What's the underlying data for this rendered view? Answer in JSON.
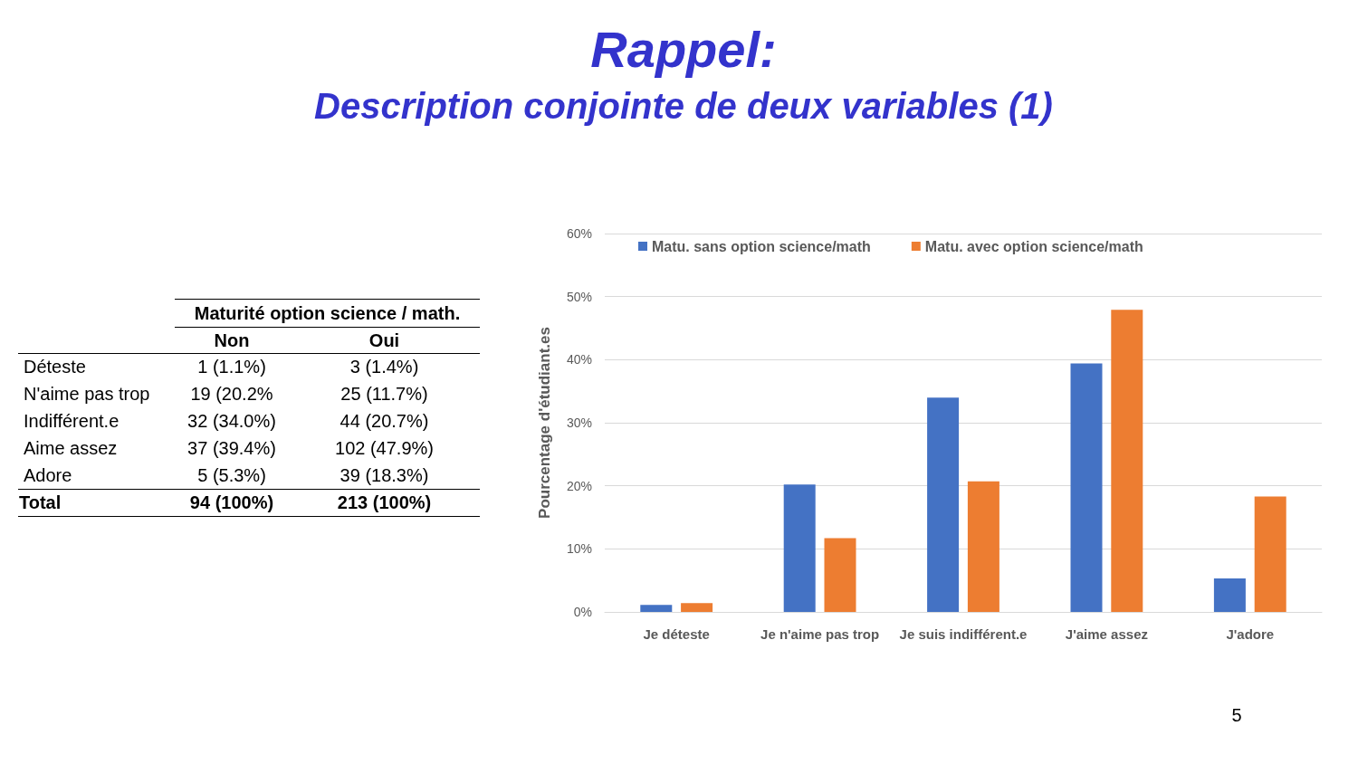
{
  "chart_data": {
    "type": "bar",
    "title": "Rappel:",
    "subtitle": "Description conjointe de deux variables (1)",
    "ylabel": "Pourcentage d'étudiant.es",
    "categories": [
      "Je déteste",
      "Je n'aime pas trop",
      "Je suis indifférent.e",
      "J'aime assez",
      "J'adore"
    ],
    "series": [
      {
        "name": "Matu. sans option science/math",
        "color": "#4472c4",
        "values": [
          1.1,
          20.2,
          34.0,
          39.4,
          5.3
        ]
      },
      {
        "name": "Matu. avec option science/math",
        "color": "#ed7d31",
        "values": [
          1.4,
          11.7,
          20.7,
          47.9,
          18.3
        ]
      }
    ],
    "ylim": [
      0,
      60
    ],
    "yticks": [
      {
        "value": 0,
        "label": "0%"
      },
      {
        "value": 10,
        "label": "10%"
      },
      {
        "value": 20,
        "label": "20%"
      },
      {
        "value": 30,
        "label": "30%"
      },
      {
        "value": 40,
        "label": "40%"
      },
      {
        "value": 50,
        "label": "50%"
      },
      {
        "value": 60,
        "label": "60%"
      }
    ],
    "grid": "y",
    "legend": "top",
    "annotations": [
      "Maturité option science / math.",
      "Non",
      "Oui",
      "Déteste",
      "1 (1.1%)",
      "3 (1.4%)",
      "N'aime pas trop",
      "19 (20.2%",
      "25 (11.7%)",
      "Indifférent.e",
      "32 (34.0%)",
      "44 (20.7%)",
      "Aime assez",
      "37 (39.4%)",
      "102 (47.9%)",
      "Adore",
      "5 (5.3%)",
      "39 (18.3%)",
      "Total",
      "94 (100%)",
      "213 (100%)",
      "5"
    ]
  }
}
